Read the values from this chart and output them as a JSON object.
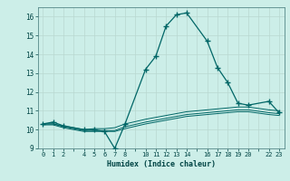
{
  "title": "",
  "xlabel": "Humidex (Indice chaleur)",
  "ylabel": "",
  "background_color": "#cceee8",
  "grid_color": "#b8d8d0",
  "line_color": "#006666",
  "ylim": [
    9,
    16.5
  ],
  "xlim": [
    -0.5,
    23.5
  ],
  "yticks": [
    9,
    10,
    11,
    12,
    13,
    14,
    15,
    16
  ],
  "xticks": [
    0,
    1,
    2,
    4,
    5,
    6,
    7,
    8,
    10,
    11,
    12,
    13,
    14,
    16,
    17,
    18,
    19,
    20,
    22,
    23
  ],
  "xtick_labels": [
    "0",
    "1",
    "2",
    "4",
    "5",
    "6",
    "7",
    "8",
    "10",
    "11",
    "12",
    "13",
    "14",
    "16",
    "17",
    "18",
    "19",
    "20",
    "22",
    "23"
  ],
  "lines": [
    {
      "x": [
        0,
        1,
        2,
        4,
        5,
        6,
        7,
        8,
        10,
        11,
        12,
        13,
        14,
        16,
        17,
        18,
        19,
        20,
        22,
        23
      ],
      "y": [
        10.3,
        10.4,
        10.2,
        10.0,
        10.0,
        9.9,
        9.0,
        10.3,
        13.2,
        13.9,
        15.5,
        16.1,
        16.2,
        14.7,
        13.3,
        12.5,
        11.4,
        11.3,
        11.5,
        10.9
      ],
      "marker": true
    },
    {
      "x": [
        0,
        1,
        2,
        4,
        5,
        6,
        7,
        8,
        10,
        11,
        12,
        13,
        14,
        16,
        17,
        18,
        19,
        20,
        22,
        23
      ],
      "y": [
        10.3,
        10.3,
        10.2,
        10.0,
        10.05,
        10.05,
        10.1,
        10.3,
        10.55,
        10.65,
        10.75,
        10.85,
        10.95,
        11.05,
        11.1,
        11.15,
        11.2,
        11.2,
        11.05,
        11.0
      ],
      "marker": false
    },
    {
      "x": [
        0,
        1,
        2,
        4,
        5,
        6,
        7,
        8,
        10,
        11,
        12,
        13,
        14,
        16,
        17,
        18,
        19,
        20,
        22,
        23
      ],
      "y": [
        10.3,
        10.3,
        10.15,
        9.95,
        9.95,
        9.95,
        9.95,
        10.15,
        10.4,
        10.5,
        10.6,
        10.7,
        10.8,
        10.9,
        10.95,
        11.0,
        11.05,
        11.05,
        10.9,
        10.85
      ],
      "marker": false
    },
    {
      "x": [
        0,
        1,
        2,
        4,
        5,
        6,
        7,
        8,
        10,
        11,
        12,
        13,
        14,
        16,
        17,
        18,
        19,
        20,
        22,
        23
      ],
      "y": [
        10.25,
        10.25,
        10.1,
        9.9,
        9.9,
        9.9,
        9.9,
        10.05,
        10.3,
        10.4,
        10.5,
        10.6,
        10.7,
        10.8,
        10.85,
        10.9,
        10.95,
        10.95,
        10.8,
        10.75
      ],
      "marker": false
    }
  ]
}
